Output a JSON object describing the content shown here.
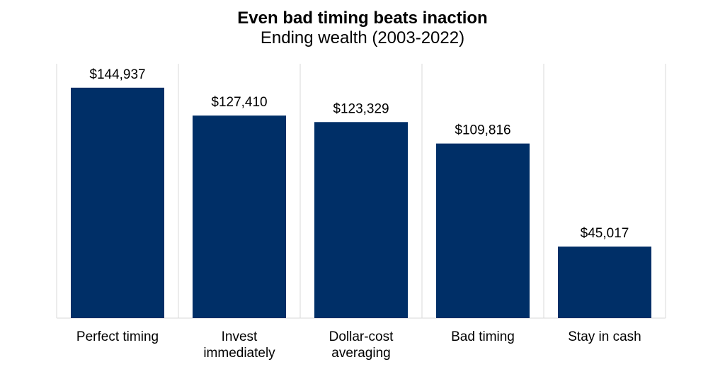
{
  "chart_data": {
    "type": "bar",
    "title": "Even bad timing beats inaction",
    "subtitle": "Ending wealth (2003-2022)",
    "categories": [
      "Perfect timing",
      "Invest immediately",
      "Dollar-cost averaging",
      "Bad timing",
      "Stay in cash"
    ],
    "category_lines": [
      [
        "Perfect timing"
      ],
      [
        "Invest",
        "immediately"
      ],
      [
        "Dollar-cost",
        "averaging"
      ],
      [
        "Bad timing"
      ],
      [
        "Stay in cash"
      ]
    ],
    "values": [
      144937,
      127410,
      123329,
      109816,
      45017
    ],
    "value_labels": [
      "$144,937",
      "$127,410",
      "$123,329",
      "$109,816",
      "$45,017"
    ],
    "xlabel": "",
    "ylabel": "",
    "ylim": [
      0,
      160000
    ],
    "grid": "vertical separators",
    "legend": "none",
    "colors": {
      "bar": "#002F67",
      "grid": "#D9D9D9"
    }
  }
}
